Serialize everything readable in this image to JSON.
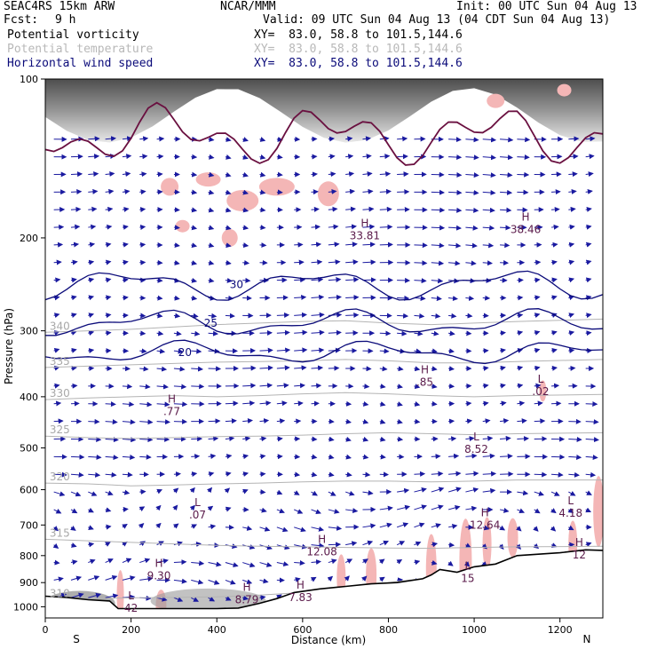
{
  "header": {
    "model": "SEAC4RS 15km ARW",
    "org": "NCAR/MMM",
    "init": "Init: 00 UTC Sun 04 Aug 13",
    "fcst_label": "Fcst:",
    "fcst_value": "9 h",
    "valid": "Valid: 09 UTC Sun 04 Aug 13 (04 CDT Sun 04 Aug 13)",
    "fields": [
      {
        "name": "Potential vorticity",
        "xy": "XY=  83.0, 58.8 to 101.5,144.6",
        "color": "#000000"
      },
      {
        "name": "Potential temperature",
        "xy": "XY=  83.0, 58.8 to 101.5,144.6",
        "color": "#b8b8b8"
      },
      {
        "name": "Horizontal wind speed",
        "xy": "XY=  83.0, 58.8 to 101.5,144.6",
        "color": "#0b0b7a"
      }
    ]
  },
  "chart_data": {
    "type": "cross-section",
    "xlabel": "Distance (km)",
    "ylabel": "Pressure (hPa)",
    "xlim": [
      0,
      1300
    ],
    "ylim": [
      1050,
      100
    ],
    "y_scale": "log",
    "x_ticks": [
      0,
      200,
      400,
      600,
      800,
      1000,
      1200
    ],
    "y_ticks": [
      100,
      200,
      300,
      400,
      500,
      600,
      700,
      800,
      900,
      1000
    ],
    "endpoint_labels": {
      "left": "S",
      "right": "N"
    },
    "theta_isentropes": [
      {
        "label": "310",
        "p": [
          970,
          965,
          962,
          960,
          958,
          950,
          940,
          925,
          900,
          880,
          860,
          850,
          840
        ]
      },
      {
        "label": "315",
        "p": [
          745,
          750,
          755,
          760,
          765,
          768,
          770,
          772,
          774,
          775,
          772,
          770,
          768
        ]
      },
      {
        "label": "320",
        "p": [
          583,
          585,
          590,
          588,
          585,
          583,
          580,
          578,
          578,
          580,
          578,
          575,
          575
        ]
      },
      {
        "label": "325",
        "p": [
          475,
          478,
          480,
          478,
          476,
          475,
          473,
          470,
          468,
          470,
          472,
          470,
          468
        ]
      },
      {
        "label": "330",
        "p": [
          405,
          402,
          400,
          398,
          400,
          398,
          395,
          393,
          395,
          398,
          400,
          398,
          396
        ]
      },
      {
        "label": "335",
        "p": [
          352,
          350,
          348,
          346,
          344,
          343,
          342,
          340,
          342,
          345,
          345,
          343,
          340
        ]
      },
      {
        "label": "340",
        "p": [
          302,
          300,
          298,
          295,
          292,
          290,
          288,
          287,
          290,
          292,
          290,
          288,
          285
        ]
      }
    ],
    "theta_x": [
      0,
      100,
      200,
      300,
      400,
      500,
      600,
      700,
      800,
      900,
      1000,
      1100,
      1300
    ],
    "wind_speed_contours": [
      {
        "label": "20",
        "p": 330
      },
      {
        "label": "25",
        "p": 290
      },
      {
        "label": "30",
        "p": 245
      }
    ],
    "extrema": [
      {
        "type": "H",
        "value": "9.30",
        "x": 265,
        "p": 860
      },
      {
        "type": "H",
        "value": ".77",
        "x": 295,
        "p": 420
      },
      {
        "type": "L",
        "value": ".07",
        "x": 355,
        "p": 660
      },
      {
        "type": "H",
        "value": "12.08",
        "x": 645,
        "p": 775
      },
      {
        "type": "H",
        "value": ".85",
        "x": 885,
        "p": 370
      },
      {
        "type": "L",
        "value": "8.52",
        "x": 1005,
        "p": 495
      },
      {
        "type": "H",
        "value": "12.64",
        "x": 1025,
        "p": 690
      },
      {
        "type": "L",
        "value": ".02",
        "x": 1155,
        "p": 385
      },
      {
        "type": "L",
        "value": "4.18",
        "x": 1225,
        "p": 655
      },
      {
        "type": "H",
        "value": "12",
        "x": 1245,
        "p": 785
      },
      {
        "type": "H",
        "value": "7.83",
        "x": 595,
        "p": 945
      },
      {
        "type": "H",
        "value": "8.79",
        "x": 470,
        "p": 955
      },
      {
        "type": "H",
        "value": "33.81",
        "x": 745,
        "p": 195
      },
      {
        "type": "H",
        "value": "38.46",
        "x": 1120,
        "p": 190
      },
      {
        "type": "L",
        "value": "15",
        "x": 985,
        "p": 870
      },
      {
        "type": "L",
        "value": "42",
        "x": 200,
        "p": 990
      }
    ],
    "terrain_p": [
      955,
      960,
      970,
      975,
      1008,
      1008,
      1008,
      1008,
      1006,
      985,
      965,
      940,
      925,
      915,
      905,
      900,
      885,
      870,
      850,
      860,
      840,
      830,
      800,
      795,
      790,
      780,
      782
    ],
    "terrain_x": [
      0,
      50,
      100,
      150,
      170,
      250,
      350,
      400,
      450,
      500,
      540,
      580,
      640,
      700,
      760,
      820,
      880,
      900,
      920,
      960,
      1000,
      1050,
      1100,
      1150,
      1200,
      1260,
      1300
    ]
  }
}
